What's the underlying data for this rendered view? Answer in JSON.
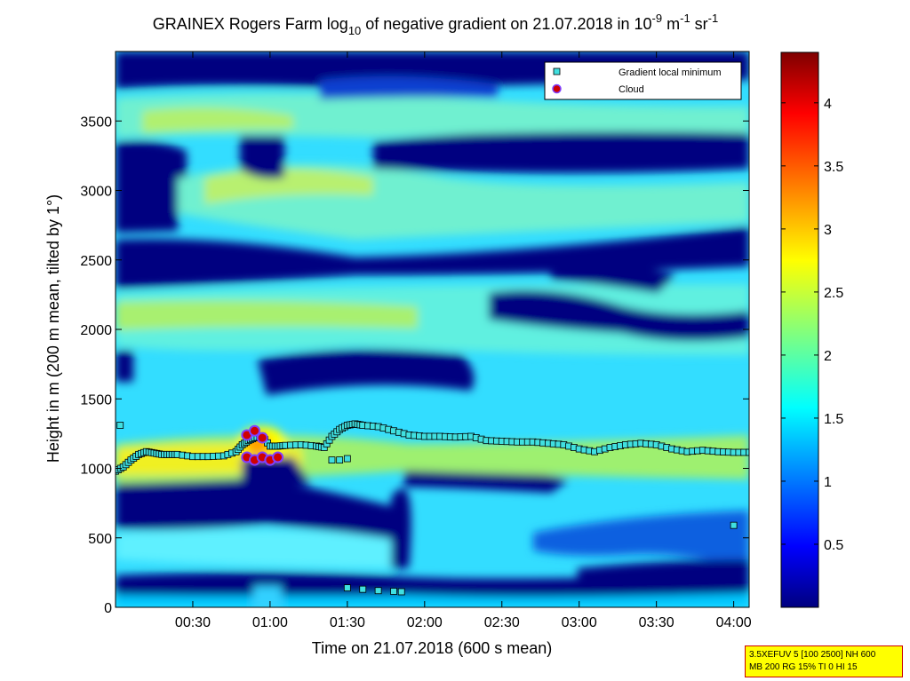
{
  "chart_data": {
    "type": "heatmap",
    "title": {
      "prefix": "GRAINEX Rogers Farm log",
      "prefix_sub": "10",
      "middle": " of negative gradient on 21.07.2018 in 10",
      "exp1": "-9",
      "unit1": " m",
      "exp2": "-1",
      "unit2": " sr",
      "exp3": "-1"
    },
    "xlabel": "Time on 21.07.2018 (600 s mean)",
    "ylabel": "Height in m (200 m mean, tilted by 1°)",
    "x_range_hours": [
      0.0,
      4.1
    ],
    "xticks": [
      {
        "v": 0.5,
        "label": "00:30"
      },
      {
        "v": 1.0,
        "label": "01:00"
      },
      {
        "v": 1.5,
        "label": "01:30"
      },
      {
        "v": 2.0,
        "label": "02:00"
      },
      {
        "v": 2.5,
        "label": "02:30"
      },
      {
        "v": 3.0,
        "label": "03:00"
      },
      {
        "v": 3.5,
        "label": "03:30"
      },
      {
        "v": 4.0,
        "label": "04:00"
      }
    ],
    "ylim": [
      0,
      4000
    ],
    "yticks": [
      0,
      500,
      1000,
      1500,
      2000,
      2500,
      3000,
      3500
    ],
    "colorbar": {
      "range": [
        0,
        4.4
      ],
      "ticks": [
        0.5,
        1,
        1.5,
        2,
        2.5,
        3,
        3.5,
        4
      ],
      "tick_labels": [
        "0.5",
        "1",
        "1.5",
        "2",
        "2.5",
        "3",
        "3.5",
        "4"
      ]
    },
    "legend": {
      "placement": "top-right",
      "entries": [
        {
          "label": "Gradient local minimum",
          "marker": "square",
          "color": "#40e0e0"
        },
        {
          "label": "Cloud",
          "marker": "circle",
          "color": "#d00000"
        }
      ]
    },
    "gradient_local_minimum": [
      [
        0.0,
        980
      ],
      [
        0.05,
        1010
      ],
      [
        0.1,
        1060
      ],
      [
        0.15,
        1100
      ],
      [
        0.2,
        1120
      ],
      [
        0.25,
        1110
      ],
      [
        0.3,
        1100
      ],
      [
        0.35,
        1100
      ],
      [
        0.4,
        1100
      ],
      [
        0.5,
        1085
      ],
      [
        0.6,
        1085
      ],
      [
        0.7,
        1090
      ],
      [
        0.78,
        1120
      ],
      [
        0.82,
        1170
      ],
      [
        0.86,
        1200
      ],
      [
        0.9,
        1220
      ],
      [
        0.95,
        1230
      ],
      [
        1.0,
        1160
      ],
      [
        1.05,
        1160
      ],
      [
        1.1,
        1165
      ],
      [
        1.2,
        1170
      ],
      [
        1.3,
        1160
      ],
      [
        1.35,
        1150
      ],
      [
        1.4,
        1230
      ],
      [
        1.45,
        1280
      ],
      [
        1.5,
        1310
      ],
      [
        1.55,
        1320
      ],
      [
        1.6,
        1310
      ],
      [
        1.7,
        1300
      ],
      [
        1.8,
        1270
      ],
      [
        1.9,
        1240
      ],
      [
        2.0,
        1230
      ],
      [
        2.1,
        1230
      ],
      [
        2.2,
        1225
      ],
      [
        2.3,
        1230
      ],
      [
        2.4,
        1200
      ],
      [
        2.5,
        1195
      ],
      [
        2.6,
        1190
      ],
      [
        2.7,
        1190
      ],
      [
        2.8,
        1180
      ],
      [
        2.9,
        1170
      ],
      [
        3.0,
        1140
      ],
      [
        3.1,
        1120
      ],
      [
        3.2,
        1150
      ],
      [
        3.3,
        1170
      ],
      [
        3.4,
        1180
      ],
      [
        3.5,
        1170
      ],
      [
        3.6,
        1140
      ],
      [
        3.7,
        1120
      ],
      [
        3.8,
        1130
      ],
      [
        3.9,
        1120
      ],
      [
        4.0,
        1115
      ],
      [
        4.1,
        1115
      ]
    ],
    "gradient_local_minimum_isolated": [
      [
        0.03,
        1310
      ],
      [
        1.4,
        1060
      ],
      [
        1.45,
        1060
      ],
      [
        1.5,
        1070
      ],
      [
        1.5,
        140
      ],
      [
        1.6,
        130
      ],
      [
        1.7,
        120
      ],
      [
        1.8,
        115
      ],
      [
        1.85,
        112
      ],
      [
        4.0,
        590
      ]
    ],
    "cloud": [
      [
        0.85,
        1240
      ],
      [
        0.9,
        1270
      ],
      [
        0.95,
        1220
      ],
      [
        0.85,
        1080
      ],
      [
        0.9,
        1060
      ],
      [
        0.95,
        1080
      ],
      [
        1.0,
        1060
      ],
      [
        1.05,
        1080
      ]
    ]
  },
  "info_box": {
    "line1": "3.5XEFUV 5 [100 2500] NH 600",
    "line2": "MB 200 RG 15% TI 0 HI 15"
  }
}
